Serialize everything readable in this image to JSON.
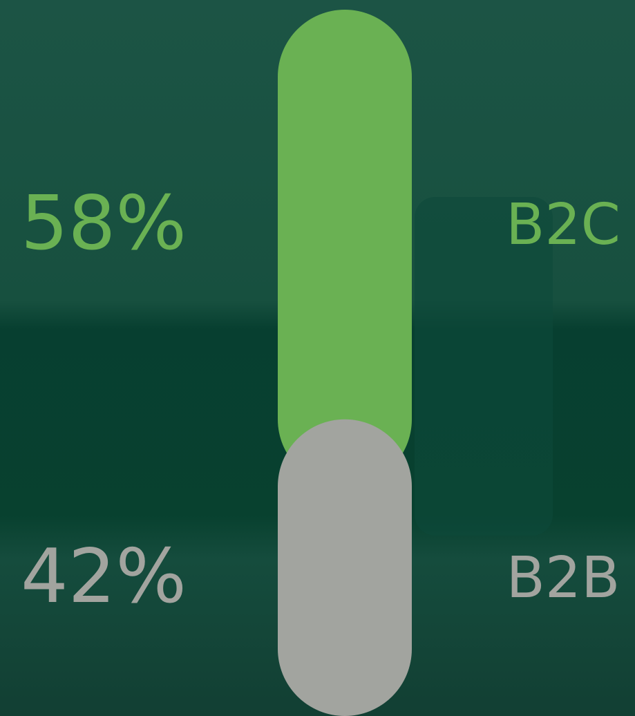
{
  "chart_data": {
    "type": "stacked-pill",
    "series": [
      {
        "name": "B2C",
        "color": "#6ab153",
        "values": [
          58
        ],
        "value_labels": [
          "58%"
        ]
      },
      {
        "name": "B2B",
        "color": "#a2a49f",
        "values": [
          42
        ],
        "value_labels": [
          "42%"
        ]
      }
    ]
  }
}
